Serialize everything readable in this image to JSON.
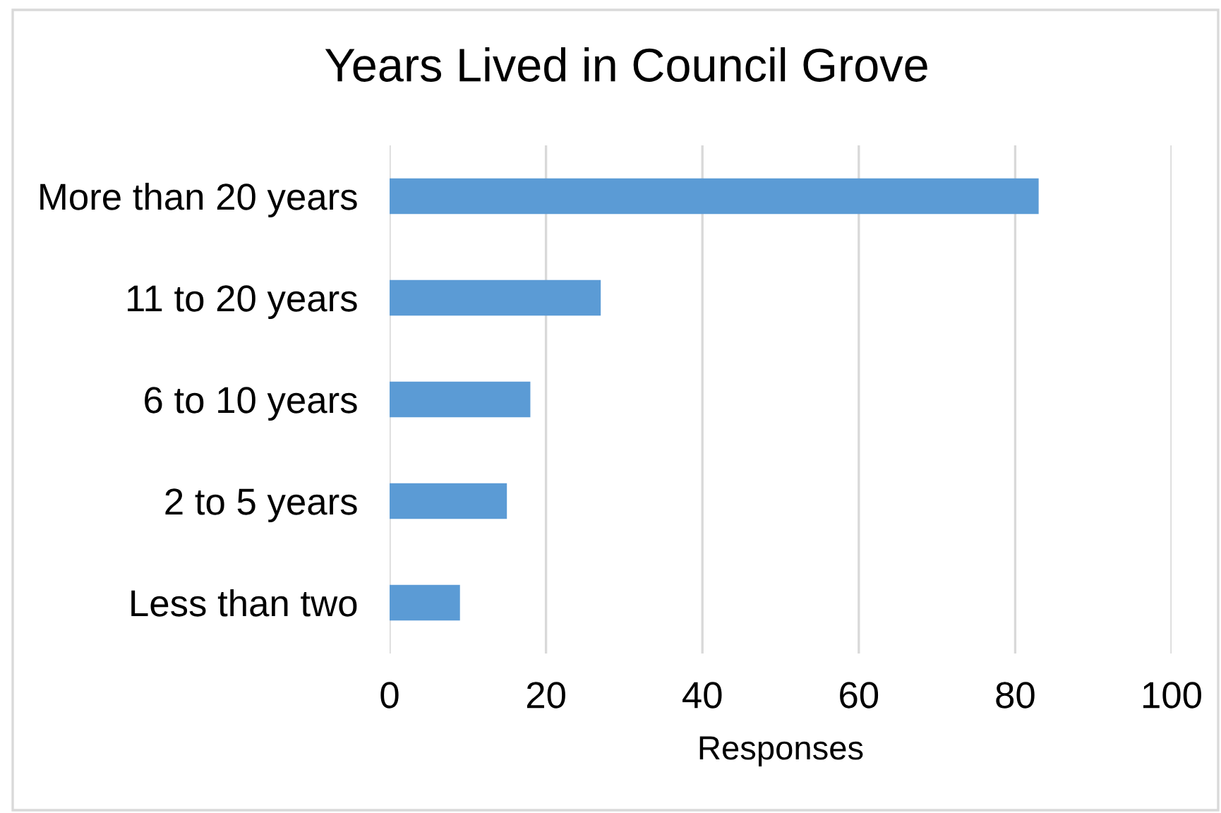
{
  "chart_data": {
    "type": "bar",
    "orientation": "horizontal",
    "title": "Years Lived in Council Grove",
    "xlabel": "Responses",
    "categories": [
      "More than 20 years",
      "11 to 20 years",
      "6 to 10 years",
      "2 to 5 years",
      "Less than two"
    ],
    "values": [
      83,
      27,
      18,
      15,
      9
    ],
    "color": "#5b9bd5",
    "xlim": [
      0,
      100
    ],
    "xticks": [
      0,
      20,
      40,
      60,
      80,
      100
    ],
    "grid": "x"
  }
}
